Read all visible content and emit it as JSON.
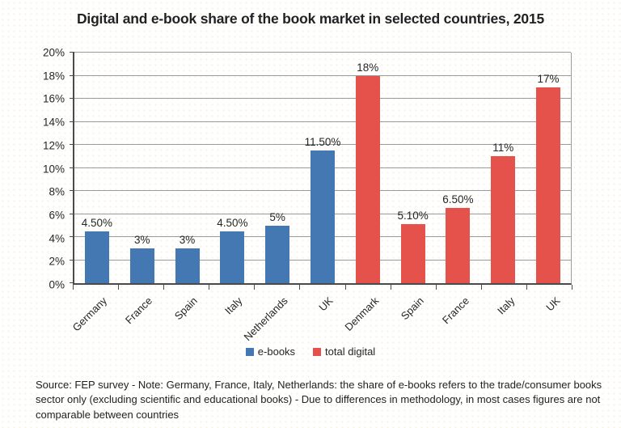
{
  "title": "Digital and e-book share of the book market in selected countries, 2015",
  "source_note": "Source: FEP survey - Note: Germany, France, Italy, Netherlands: the share of e-books refers to the trade/consumer books sector only (excluding scientific and educational books) - Due to differences in methodology, in most cases figures are not comparable between countries",
  "chart_data": {
    "type": "bar",
    "title": "Digital and e-book share of the book market in selected countries, 2015",
    "categories": [
      "Germany",
      "France",
      "Spain",
      "Italy",
      "Netherlands",
      "UK",
      "Denmark",
      "Spain",
      "France",
      "Italy",
      "UK"
    ],
    "values": [
      4.5,
      3,
      3,
      4.5,
      5,
      11.5,
      18,
      5.1,
      6.5,
      11,
      17
    ],
    "value_labels": [
      "4.50%",
      "3%",
      "3%",
      "4.50%",
      "5%",
      "11.50%",
      "18%",
      "5.10%",
      "6.50%",
      "11%",
      "17%"
    ],
    "bar_series": [
      "e-books",
      "e-books",
      "e-books",
      "e-books",
      "e-books",
      "e-books",
      "total digital",
      "total digital",
      "total digital",
      "total digital",
      "total digital"
    ],
    "legend": [
      {
        "label": "e-books",
        "color": "#4478B2"
      },
      {
        "label": "total digital",
        "color": "#E5524B"
      }
    ],
    "legend_position": "bottom",
    "xlabel": "",
    "ylabel": "",
    "ylim": [
      0,
      20
    ],
    "ytick_step": 2,
    "ytick_labels": [
      "0%",
      "2%",
      "4%",
      "6%",
      "8%",
      "10%",
      "12%",
      "14%",
      "16%",
      "18%",
      "20%"
    ],
    "grid": true,
    "gridline_color": "#9b9b9b"
  }
}
